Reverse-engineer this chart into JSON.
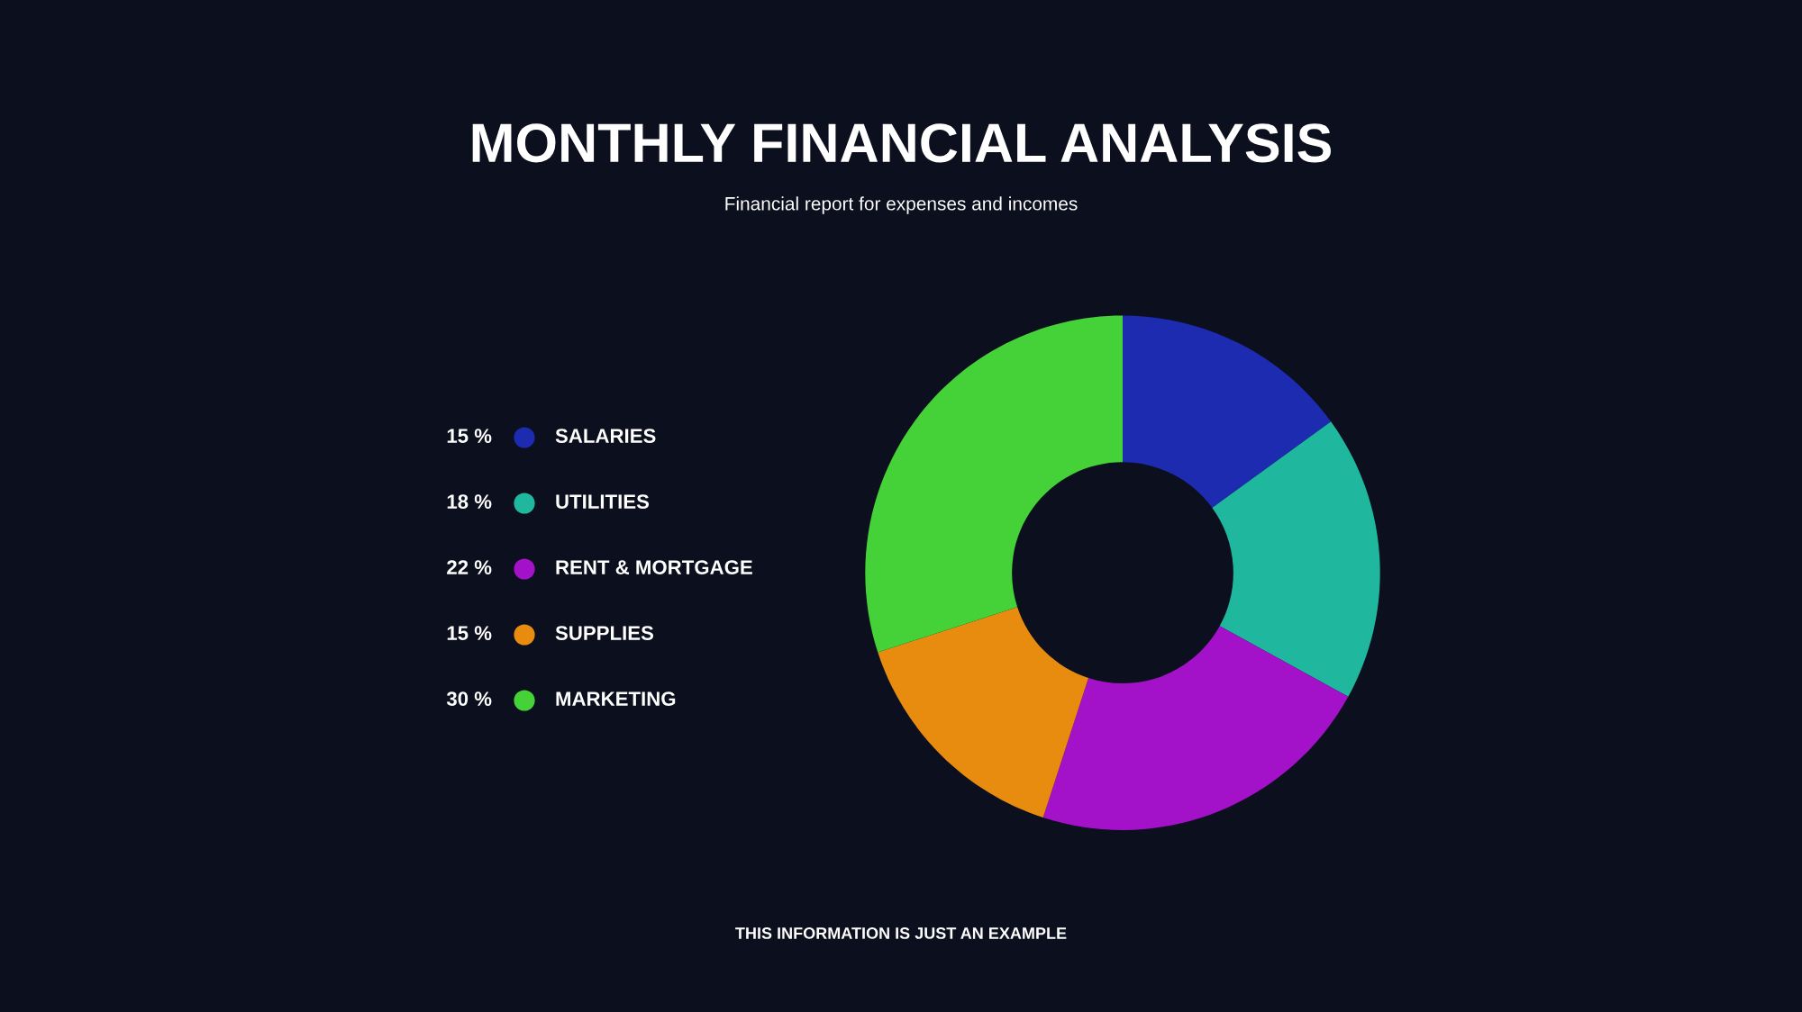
{
  "chart_data": {
    "type": "donut",
    "title": "MONTHLY FINANCIAL ANALYSIS",
    "subtitle": "Financial report for expenses and incomes",
    "categories": [
      "SALARIES",
      "UTILITIES",
      "RENT & MORTGAGE",
      "SUPPLIES",
      "MARKETING"
    ],
    "values": [
      15,
      18,
      22,
      15,
      30
    ],
    "value_labels": [
      "15 %",
      "18 %",
      "22 %",
      "15 %",
      "30 %"
    ],
    "colors": [
      "#1c2bb0",
      "#1fb89e",
      "#a312c8",
      "#e88c10",
      "#45d238"
    ],
    "legend": "left",
    "annotations": [
      "THIS INFORMATION IS JUST AN EXAMPLE"
    ]
  }
}
